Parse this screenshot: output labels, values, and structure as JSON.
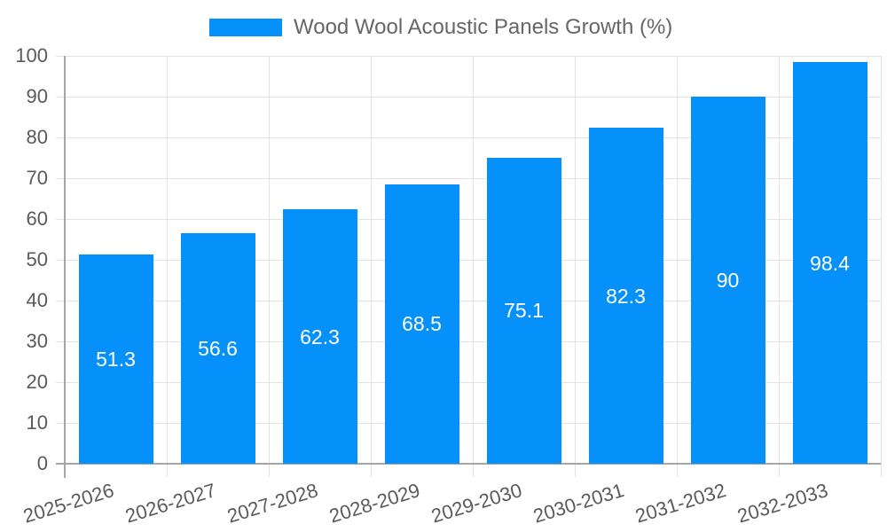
{
  "chart_data": {
    "type": "bar",
    "title": "",
    "legend": {
      "position": "top",
      "label": "Wood Wool Acoustic Panels Growth (%)"
    },
    "categories": [
      "2025-2026",
      "2026-2027",
      "2027-2028",
      "2028-2029",
      "2029-2030",
      "2030-2031",
      "2031-2032",
      "2032-2033"
    ],
    "series": [
      {
        "name": "Wood Wool Acoustic Panels Growth (%)",
        "values": [
          51.3,
          56.6,
          62.3,
          68.5,
          75.1,
          82.3,
          90,
          98.4
        ],
        "value_labels": [
          "51.3",
          "56.6",
          "62.3",
          "68.5",
          "75.1",
          "82.3",
          "90",
          "98.4"
        ],
        "color": "#0590FA"
      }
    ],
    "xlabel": "",
    "ylabel": "",
    "ylim": [
      0,
      100
    ],
    "ytick_step": 10,
    "ytick_labels": [
      "0",
      "10",
      "20",
      "30",
      "40",
      "50",
      "60",
      "70",
      "80",
      "90",
      "100"
    ],
    "grid": true,
    "x_label_rotation_deg": -17,
    "colors": {
      "bar": "#0590FA",
      "bar_value_label": "#ffffff",
      "grid": "#e3e3e3",
      "axis": "#a6a6a6",
      "tick_label": "#5a5a5a",
      "legend_text": "#666666",
      "background": "#ffffff"
    }
  }
}
